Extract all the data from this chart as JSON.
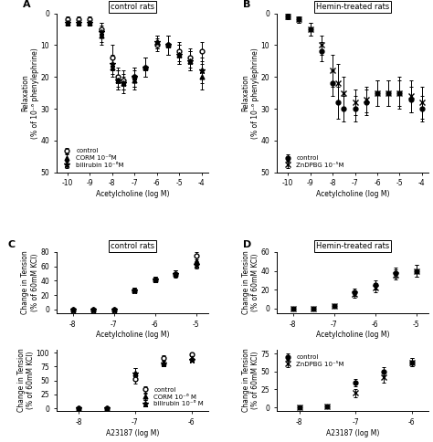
{
  "panel_A": {
    "title": "control rats",
    "xlabel": "Acetylcholine (log M)",
    "ylabel": "Relaxation\n(% of 10⁻⁶ phenylephrine)",
    "xlim": [
      -10.5,
      -3.7
    ],
    "ylim": [
      0,
      50
    ],
    "invert_y": true,
    "xticks": [
      -10,
      -9,
      -8,
      -7,
      -6,
      -5,
      -4
    ],
    "yticks": [
      0,
      10,
      20,
      30,
      40,
      50
    ],
    "series": [
      {
        "label": "control",
        "marker": "o",
        "fillstyle": "none",
        "x": [
          -10,
          -9.5,
          -9,
          -8.5,
          -8,
          -7.75,
          -7.5,
          -7,
          -6.5,
          -6,
          -5.5,
          -5,
          -4.5,
          -4
        ],
        "y": [
          2,
          2,
          2,
          5,
          14,
          20,
          21,
          20,
          17,
          10,
          10,
          12,
          14,
          12
        ],
        "yerr": [
          1,
          1,
          1,
          2,
          4,
          3,
          3,
          3,
          3,
          2,
          3,
          3,
          3,
          3
        ]
      },
      {
        "label": "CORM 10⁻⁶M",
        "marker": "^",
        "fillstyle": "full",
        "x": [
          -10,
          -9.5,
          -9,
          -8.5,
          -8,
          -7.75,
          -7.5,
          -7,
          -6.5,
          -6,
          -5.5,
          -5,
          -4.5,
          -4
        ],
        "y": [
          3,
          3,
          3,
          7,
          17,
          21,
          22,
          21,
          17,
          9,
          10,
          13,
          15,
          20
        ],
        "yerr": [
          1,
          1,
          1,
          3,
          3,
          3,
          2,
          3,
          3,
          2,
          3,
          3,
          3,
          4
        ]
      },
      {
        "label": "bilirubin 10⁻⁶M",
        "marker": "*",
        "fillstyle": "full",
        "x": [
          -10,
          -9.5,
          -9,
          -8.5,
          -8,
          -7.75,
          -7.5,
          -7,
          -6.5,
          -6,
          -5.5,
          -5,
          -4.5,
          -4
        ],
        "y": [
          3,
          3,
          3,
          6,
          16,
          21,
          22,
          20,
          17,
          9,
          10,
          13,
          15,
          18
        ],
        "yerr": [
          1,
          1,
          1,
          3,
          3,
          3,
          3,
          3,
          3,
          2,
          3,
          3,
          3,
          4
        ]
      }
    ]
  },
  "panel_B": {
    "title": "Hemin-treated rats",
    "xlabel": "Acetylcholine (log M)",
    "ylabel": "Relaxation\n(% of 10⁻⁶ phenylephrine)",
    "xlim": [
      -10.5,
      -3.7
    ],
    "ylim": [
      0,
      50
    ],
    "invert_y": true,
    "xticks": [
      -10,
      -9,
      -8,
      -7,
      -6,
      -5,
      -4
    ],
    "yticks": [
      0,
      10,
      20,
      30,
      40,
      50
    ],
    "series": [
      {
        "label": "control",
        "marker": "o",
        "fillstyle": "full",
        "x": [
          -10,
          -9.5,
          -9,
          -8.5,
          -8,
          -7.75,
          -7.5,
          -7,
          -6.5,
          -6,
          -5.5,
          -5,
          -4.5,
          -4
        ],
        "y": [
          1,
          2,
          5,
          12,
          22,
          28,
          30,
          30,
          28,
          25,
          25,
          25,
          27,
          30
        ],
        "yerr": [
          1,
          1,
          2,
          3,
          4,
          5,
          4,
          4,
          4,
          4,
          4,
          4,
          4,
          4
        ]
      },
      {
        "label": "ZnDPBG 10⁻⁵M",
        "marker": "x",
        "fillstyle": "full",
        "x": [
          -10,
          -9.5,
          -9,
          -8.5,
          -8,
          -7.75,
          -7.5,
          -7,
          -6.5,
          -6,
          -5.5,
          -5,
          -4.5,
          -4
        ],
        "y": [
          1,
          2,
          5,
          10,
          18,
          22,
          25,
          28,
          27,
          25,
          25,
          25,
          26,
          28
        ],
        "yerr": [
          1,
          1,
          2,
          3,
          5,
          6,
          5,
          4,
          4,
          4,
          4,
          5,
          5,
          5
        ]
      }
    ]
  },
  "panel_C_top": {
    "title": "control rats",
    "xlabel": "Acetylcholine (log M)",
    "ylabel": "Change in Tension\n(% of 60mM KCl)",
    "xlim": [
      -8.4,
      -4.7
    ],
    "ylim": [
      -5,
      80
    ],
    "invert_y": false,
    "xticks": [
      -8,
      -7,
      -6,
      -5
    ],
    "yticks": [
      0,
      20,
      40,
      60,
      80
    ],
    "series": [
      {
        "label": "control",
        "marker": "o",
        "fillstyle": "none",
        "x": [
          -8,
          -7.5,
          -7,
          -6.5,
          -6,
          -5.5,
          -5
        ],
        "y": [
          0,
          0,
          0,
          27,
          42,
          50,
          75
        ],
        "yerr": [
          0.5,
          0.5,
          1,
          3,
          4,
          5,
          5
        ]
      },
      {
        "label": "CORM 10⁻⁶M",
        "marker": "^",
        "fillstyle": "full",
        "x": [
          -8,
          -7.5,
          -7,
          -6.5,
          -6,
          -5.5,
          -5
        ],
        "y": [
          0,
          0,
          0,
          27,
          42,
          50,
          67
        ],
        "yerr": [
          0.5,
          0.5,
          1,
          3,
          4,
          5,
          5
        ]
      },
      {
        "label": "bilirubin 10⁻⁶M",
        "marker": "*",
        "fillstyle": "full",
        "x": [
          -8,
          -7.5,
          -7,
          -6.5,
          -6,
          -5.5,
          -5
        ],
        "y": [
          0,
          0,
          0,
          27,
          42,
          49,
          62
        ],
        "yerr": [
          0.5,
          0.5,
          1,
          3,
          4,
          5,
          5
        ]
      }
    ]
  },
  "panel_C_bot": {
    "xlabel": "A23187 (log M)",
    "ylabel": "Change in Tension\n(% of 60mM KCl)",
    "xlim": [
      -8.4,
      -5.7
    ],
    "ylim": [
      -5,
      105
    ],
    "invert_y": false,
    "xticks": [
      -8,
      -7,
      -6
    ],
    "yticks": [
      0,
      25,
      50,
      75,
      100
    ],
    "series": [
      {
        "label": "control",
        "marker": "o",
        "fillstyle": "none",
        "x": [
          -8,
          -7.5,
          -7,
          -6.5,
          -6
        ],
        "y": [
          0,
          0,
          52,
          90,
          97
        ],
        "yerr": [
          0.5,
          1,
          8,
          5,
          3
        ]
      },
      {
        "label": "CORM 10⁻⁶ M",
        "marker": "^",
        "fillstyle": "full",
        "x": [
          -8,
          -7.5,
          -7,
          -6.5,
          -6
        ],
        "y": [
          0,
          0,
          63,
          83,
          90
        ],
        "yerr": [
          0.5,
          1,
          9,
          5,
          3
        ]
      },
      {
        "label": "bilirubin 10⁻⁶ M",
        "marker": "*",
        "fillstyle": "full",
        "x": [
          -8,
          -7.5,
          -7,
          -6.5,
          -6
        ],
        "y": [
          0,
          0,
          63,
          81,
          87
        ],
        "yerr": [
          0.5,
          1,
          9,
          5,
          3
        ]
      }
    ]
  },
  "panel_D_top": {
    "title": "Hemin-treated rats",
    "xlabel": "Acetylcholine (log M)",
    "ylabel": "Change in Tension\n(% of 60mM KCl)",
    "xlim": [
      -8.4,
      -4.7
    ],
    "ylim": [
      -5,
      60
    ],
    "invert_y": false,
    "xticks": [
      -8,
      -7,
      -6,
      -5
    ],
    "yticks": [
      0,
      20,
      40,
      60
    ],
    "series": [
      {
        "label": "control",
        "marker": "o",
        "fillstyle": "full",
        "x": [
          -8,
          -7.5,
          -7,
          -6.5,
          -6,
          -5.5,
          -5
        ],
        "y": [
          0,
          0,
          3,
          17,
          25,
          38,
          40
        ],
        "yerr": [
          0.5,
          1,
          2,
          4,
          5,
          5,
          6
        ]
      },
      {
        "label": "ZnDPBG 10⁻⁵M",
        "marker": "x",
        "fillstyle": "full",
        "x": [
          -8,
          -7.5,
          -7,
          -6.5,
          -6,
          -5.5,
          -5
        ],
        "y": [
          0,
          0,
          3,
          15,
          22,
          36,
          40
        ],
        "yerr": [
          0.5,
          1,
          2,
          4,
          5,
          5,
          6
        ]
      }
    ]
  },
  "panel_D_bot": {
    "xlabel": "A23187 (log M)",
    "ylabel": "Change in Tension\n(% of 60mM KCl)",
    "xlim": [
      -8.4,
      -5.7
    ],
    "ylim": [
      -5,
      80
    ],
    "invert_y": false,
    "xticks": [
      -8,
      -7,
      -6
    ],
    "yticks": [
      0,
      25,
      50,
      75
    ],
    "series": [
      {
        "label": "control",
        "marker": "o",
        "fillstyle": "full",
        "x": [
          -8,
          -7.5,
          -7,
          -6.5,
          -6
        ],
        "y": [
          0,
          2,
          35,
          50,
          63
        ],
        "yerr": [
          0.5,
          1,
          5,
          6,
          6
        ]
      },
      {
        "label": "ZnDPBG 10⁻⁵M",
        "marker": "x",
        "fillstyle": "full",
        "x": [
          -8,
          -7.5,
          -7,
          -6.5,
          -6
        ],
        "y": [
          0,
          2,
          20,
          42,
          63
        ],
        "yerr": [
          0.5,
          1,
          6,
          7,
          6
        ]
      }
    ]
  }
}
